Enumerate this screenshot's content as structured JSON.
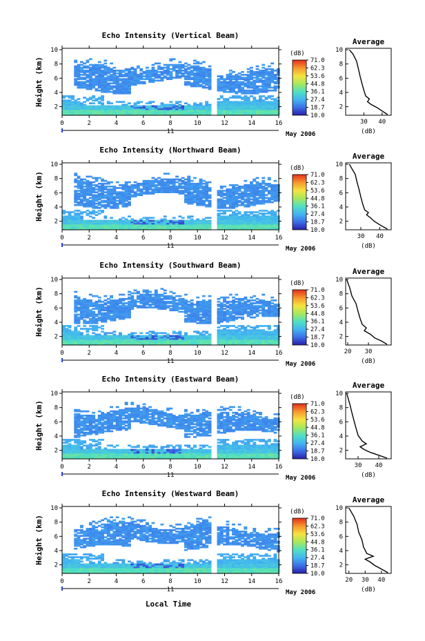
{
  "figure": {
    "xlabel": "Local Time",
    "date_label": "May 2006",
    "day_label": "11",
    "cbar_unit": "(dB)",
    "cbar_ticks": [
      "71.0",
      "62.3",
      "53.6",
      "44.8",
      "36.1",
      "27.4",
      "18.7",
      "10.0"
    ],
    "avg_title": "Average",
    "avg_xlabel": "(dB)"
  },
  "chart_data": [
    {
      "type": "heatmap",
      "title": "Echo Intensity (Vertical Beam)",
      "ylabel": "Height (km)",
      "xlim": [
        0,
        16
      ],
      "ylim": [
        0.8,
        10.2
      ],
      "xticks": [
        0,
        2,
        4,
        6,
        8,
        10,
        12,
        14,
        16
      ],
      "yticks": [
        2,
        4,
        6,
        8,
        10
      ],
      "color_scale_db": [
        10.0,
        71.0
      ],
      "profile": {
        "xlim": [
          20,
          45
        ],
        "xticks": [
          30,
          40
        ],
        "points": [
          [
            43,
            0.9
          ],
          [
            40,
            1.4
          ],
          [
            37,
            1.9
          ],
          [
            34,
            2.3
          ],
          [
            32,
            2.7
          ],
          [
            33,
            3.1
          ],
          [
            31,
            3.5
          ],
          [
            30,
            4.3
          ],
          [
            29,
            5.2
          ],
          [
            28,
            6.2
          ],
          [
            27,
            7.3
          ],
          [
            26,
            8.4
          ],
          [
            24,
            9.4
          ],
          [
            22,
            10.0
          ]
        ]
      }
    },
    {
      "type": "heatmap",
      "title": "Echo Intensity (Northward Beam)",
      "ylabel": "Height (km)",
      "xlim": [
        0,
        16
      ],
      "ylim": [
        0.8,
        10.2
      ],
      "xticks": [
        0,
        2,
        4,
        6,
        8,
        10,
        12,
        14,
        16
      ],
      "yticks": [
        2,
        4,
        6,
        8,
        10
      ],
      "color_scale_db": [
        10.0,
        71.0
      ],
      "profile": {
        "xlim": [
          22,
          46
        ],
        "xticks": [
          30,
          40
        ],
        "points": [
          [
            44,
            0.9
          ],
          [
            40,
            1.5
          ],
          [
            37,
            2.0
          ],
          [
            35,
            2.5
          ],
          [
            33,
            2.9
          ],
          [
            34,
            3.2
          ],
          [
            32,
            3.6
          ],
          [
            31,
            4.4
          ],
          [
            30,
            5.4
          ],
          [
            29,
            6.5
          ],
          [
            28,
            7.5
          ],
          [
            27,
            8.6
          ],
          [
            25,
            9.5
          ],
          [
            24,
            10.0
          ]
        ]
      }
    },
    {
      "type": "heatmap",
      "title": "Echo Intensity (Southward Beam)",
      "ylabel": "Height (km)",
      "xlim": [
        0,
        16
      ],
      "ylim": [
        0.8,
        10.2
      ],
      "xticks": [
        0,
        2,
        4,
        6,
        8,
        10,
        12,
        14,
        16
      ],
      "yticks": [
        2,
        4,
        6,
        8,
        10
      ],
      "color_scale_db": [
        10.0,
        71.0
      ],
      "profile": {
        "xlim": [
          19,
          41
        ],
        "xticks": [
          20,
          30
        ],
        "points": [
          [
            39,
            0.9
          ],
          [
            36,
            1.4
          ],
          [
            33,
            1.8
          ],
          [
            31,
            2.3
          ],
          [
            28,
            2.8
          ],
          [
            29,
            3.2
          ],
          [
            27,
            3.7
          ],
          [
            26,
            4.5
          ],
          [
            25,
            5.5
          ],
          [
            24,
            6.6
          ],
          [
            22,
            7.7
          ],
          [
            21,
            8.8
          ],
          [
            20,
            9.6
          ],
          [
            19.5,
            10.0
          ]
        ]
      }
    },
    {
      "type": "heatmap",
      "title": "Echo Intensity (Eastward Beam)",
      "ylabel": "Height (km)",
      "xlim": [
        0,
        16
      ],
      "ylim": [
        0.8,
        10.2
      ],
      "xticks": [
        0,
        2,
        4,
        6,
        8,
        10,
        12,
        14,
        16
      ],
      "yticks": [
        2,
        4,
        6,
        8,
        10
      ],
      "color_scale_db": [
        10.0,
        71.0
      ],
      "profile": {
        "xlim": [
          24,
          46
        ],
        "xticks": [
          30,
          40
        ],
        "points": [
          [
            44,
            0.9
          ],
          [
            40,
            1.3
          ],
          [
            36,
            1.7
          ],
          [
            33,
            2.1
          ],
          [
            31,
            2.5
          ],
          [
            34,
            2.9
          ],
          [
            32,
            3.3
          ],
          [
            30,
            4.1
          ],
          [
            29,
            5.1
          ],
          [
            28,
            6.2
          ],
          [
            27,
            7.3
          ],
          [
            26,
            8.5
          ],
          [
            25,
            9.5
          ],
          [
            24.5,
            10.0
          ]
        ]
      }
    },
    {
      "type": "heatmap",
      "title": "Echo Intensity (Westward Beam)",
      "ylabel": "Height (km)",
      "xlim": [
        0,
        16
      ],
      "ylim": [
        0.8,
        10.2
      ],
      "xticks": [
        0,
        2,
        4,
        6,
        8,
        10,
        12,
        14,
        16
      ],
      "yticks": [
        2,
        4,
        6,
        8,
        10
      ],
      "color_scale_db": [
        10.0,
        71.0
      ],
      "profile": {
        "xlim": [
          18,
          46
        ],
        "xticks": [
          20,
          30,
          40
        ],
        "points": [
          [
            44,
            0.9
          ],
          [
            40,
            1.4
          ],
          [
            36,
            1.9
          ],
          [
            33,
            2.4
          ],
          [
            30,
            2.8
          ],
          [
            35,
            3.2
          ],
          [
            31,
            3.6
          ],
          [
            29,
            4.5
          ],
          [
            28,
            5.5
          ],
          [
            26,
            6.6
          ],
          [
            25,
            7.7
          ],
          [
            23,
            8.8
          ],
          [
            21,
            9.6
          ],
          [
            20,
            10.0
          ]
        ]
      }
    }
  ]
}
